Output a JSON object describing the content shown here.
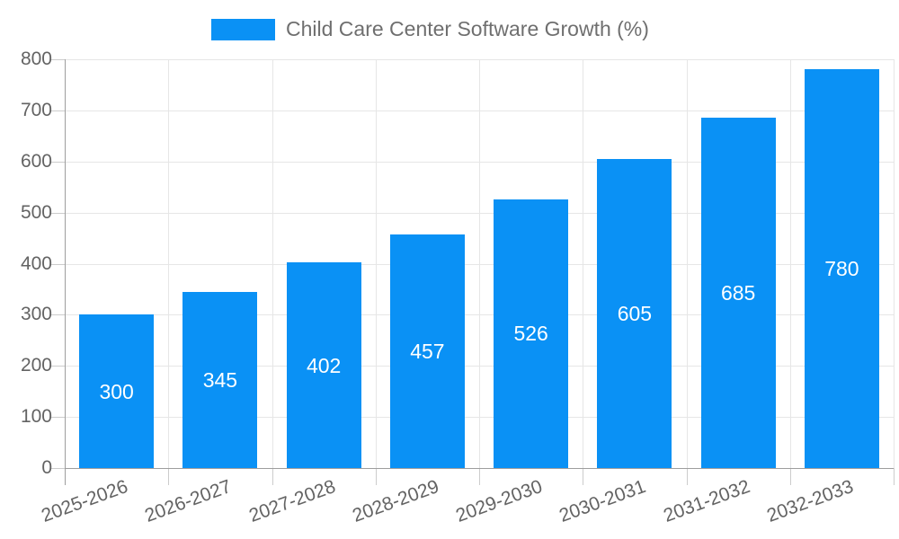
{
  "legend": {
    "series_label": "Child Care Center Software Growth (%)"
  },
  "chart_data": {
    "type": "bar",
    "title": "Child Care Center Software Growth (%)",
    "categories": [
      "2025-2026",
      "2026-2027",
      "2027-2028",
      "2028-2029",
      "2029-2030",
      "2030-2031",
      "2031-2032",
      "2032-2033"
    ],
    "values": [
      300,
      345,
      402,
      457,
      526,
      605,
      685,
      780
    ],
    "value_labels": [
      "300",
      "345",
      "402",
      "457",
      "526",
      "605",
      "685",
      "780"
    ],
    "xlabel": "",
    "ylabel": "",
    "ylim": [
      0,
      800
    ],
    "ytick_step": 100,
    "ytick_labels": [
      "0",
      "100",
      "200",
      "300",
      "400",
      "500",
      "600",
      "700",
      "800"
    ],
    "grid": true,
    "legend_position": "top-center",
    "colors": {
      "bar": "#0a91f5",
      "value_label": "#ffffff",
      "axis_text": "#636363",
      "legend_text": "#6f6f6f",
      "gridline": "#e6e6e6",
      "axis_line": "#9e9e9e",
      "tick": "#cccccc",
      "background": "#ffffff"
    }
  }
}
